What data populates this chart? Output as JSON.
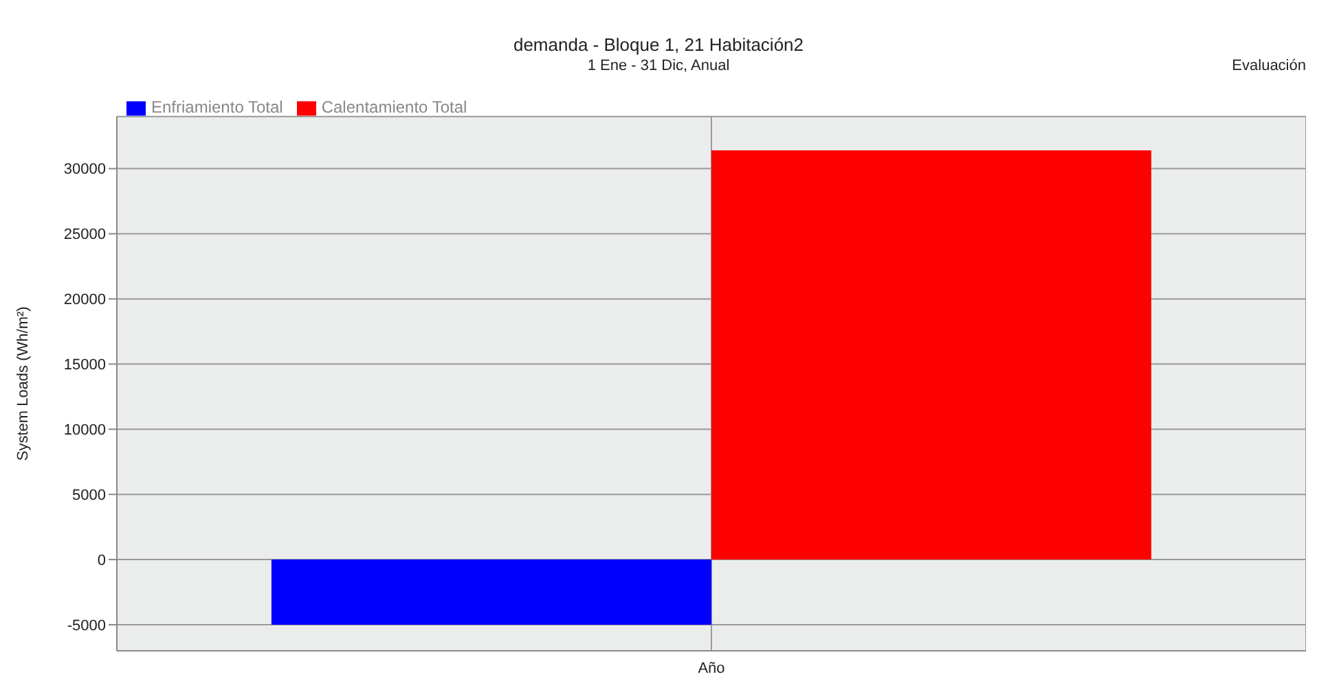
{
  "chart_data": {
    "type": "bar",
    "title": "demanda - Bloque 1, 21 Habitación2",
    "subtitle": "1 Ene - 31 Dic, Anual",
    "annotations": [
      "Evaluación"
    ],
    "ylabel": "System Loads (Wh/m²)",
    "categories": [
      "Año"
    ],
    "series": [
      {
        "name": "Enfriamiento Total",
        "color": "#0000ff",
        "values": [
          -5000
        ]
      },
      {
        "name": "Calentamiento Total",
        "color": "#ff0000",
        "values": [
          31400
        ]
      }
    ],
    "ylim": [
      -7000,
      34000
    ],
    "yticks": [
      -5000,
      0,
      5000,
      10000,
      15000,
      20000,
      25000,
      30000
    ],
    "grid": true,
    "legend": "top left"
  }
}
